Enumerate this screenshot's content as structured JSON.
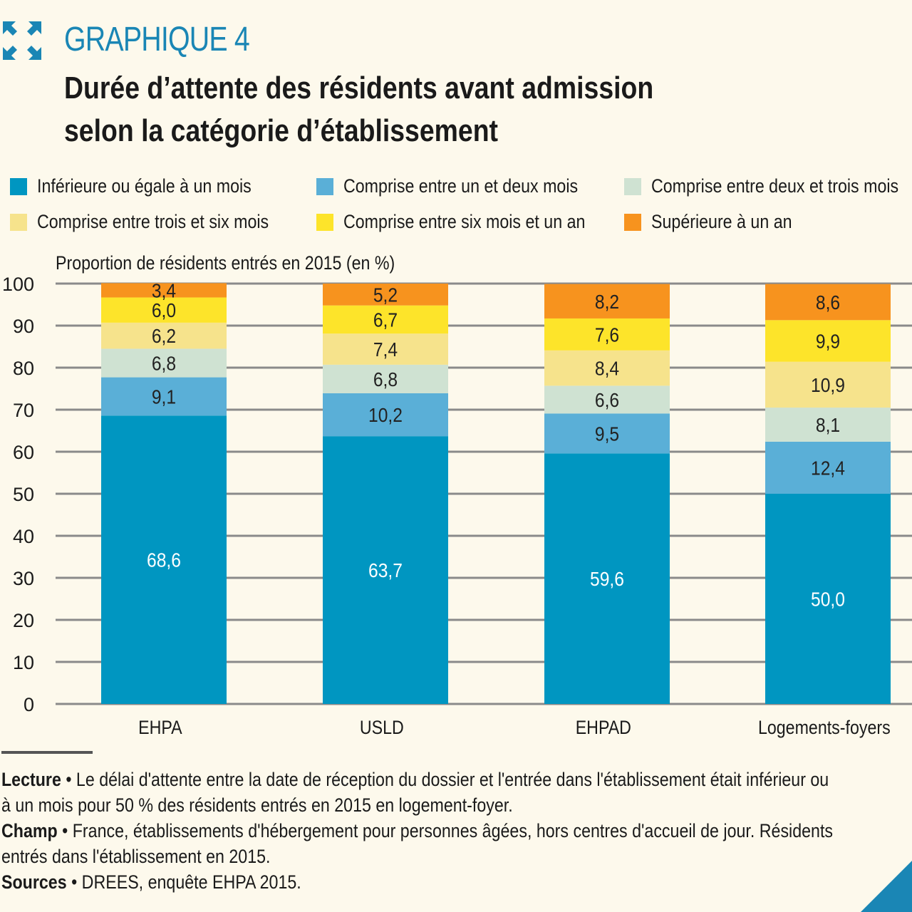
{
  "header": {
    "kicker": "GRAPHIQUE 4",
    "title_line1": "Durée d’attente des résidents avant admission",
    "title_line2": "selon la catégorie d’établissement",
    "icon": "expand-arrows-icon"
  },
  "colors": {
    "accent": "#1a86b5",
    "background": "#fdf9ec"
  },
  "chart_data": {
    "type": "bar",
    "stacked": true,
    "ylabel": "Proportion de résidents entrés en 2015 (en %)",
    "ylim": [
      0,
      100
    ],
    "yticks": [
      0,
      10,
      20,
      30,
      40,
      50,
      60,
      70,
      80,
      90,
      100
    ],
    "grid": true,
    "legend_position": "top",
    "categories": [
      "EHPA",
      "USLD",
      "EHPAD",
      "Logements-foyers"
    ],
    "series": [
      {
        "name": "Inférieure ou égale à un mois",
        "color": "#0096c1",
        "values": [
          68.6,
          63.7,
          59.6,
          50.0
        ],
        "labels": [
          "68,6",
          "63,7",
          "59,6",
          "50,0"
        ]
      },
      {
        "name": "Comprise entre un et deux mois",
        "color": "#5aafd7",
        "values": [
          9.1,
          10.2,
          9.5,
          12.4
        ],
        "labels": [
          "9,1",
          "10,2",
          "9,5",
          "12,4"
        ]
      },
      {
        "name": "Comprise entre deux et trois mois",
        "color": "#cfe2d2",
        "values": [
          6.8,
          6.8,
          6.6,
          8.1
        ],
        "labels": [
          "6,8",
          "6,8",
          "6,6",
          "8,1"
        ]
      },
      {
        "name": "Comprise entre trois et six mois",
        "color": "#f6e38c",
        "values": [
          6.2,
          7.4,
          8.4,
          10.9
        ],
        "labels": [
          "6,2",
          "7,4",
          "8,4",
          "10,9"
        ]
      },
      {
        "name": "Comprise entre six mois et un an",
        "color": "#fde42a",
        "values": [
          6.0,
          6.7,
          7.6,
          9.9
        ],
        "labels": [
          "6,0",
          "6,7",
          "7,6",
          "9,9"
        ]
      },
      {
        "name": "Supérieure à un an",
        "color": "#f7931e",
        "values": [
          3.4,
          5.2,
          8.2,
          8.6
        ],
        "labels": [
          "3,4",
          "5,2",
          "8,2",
          "8,6"
        ]
      }
    ]
  },
  "notes": {
    "lecture_label": "Lecture",
    "lecture_text": " • Le délai d'attente entre la date de réception du dossier et l'entrée dans l'établissement était inférieur ou à un mois pour 50 % des résidents entrés en 2015 en logement-foyer.",
    "champ_label": "Champ",
    "champ_text": " • France, établissements d'hébergement pour personnes âgées, hors centres d'accueil de jour. Résidents entrés dans l'établissement en 2015.",
    "sources_label": "Sources",
    "sources_text": " • DREES, enquête EHPA 2015."
  }
}
